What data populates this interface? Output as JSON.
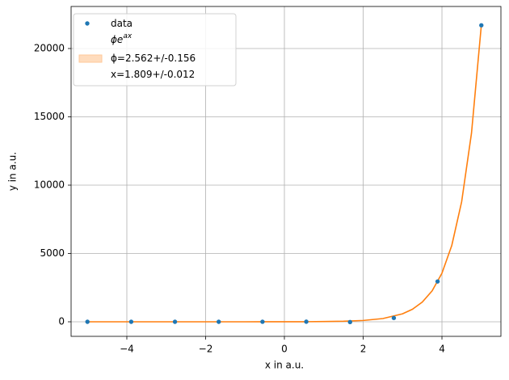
{
  "chart_data": {
    "type": "scatter-fit",
    "xlabel": "x in a.u.",
    "ylabel": "y in a.u.",
    "xlim": [
      -5.415,
      5.497
    ],
    "ylim": [
      -1065,
      23077
    ],
    "xticks": [
      {
        "value": -4,
        "label": "−4"
      },
      {
        "value": -2,
        "label": "−2"
      },
      0,
      2,
      4
    ],
    "yticks": [
      0,
      5000,
      10000,
      15000,
      20000
    ],
    "grid": true,
    "series": [
      {
        "name": "data",
        "kind": "scatter",
        "color": "#1f77b4",
        "x": [
          -5,
          -3.889,
          -2.778,
          -1.667,
          -0.556,
          0.556,
          1.667,
          2.778,
          3.889,
          5
        ],
        "values": [
          0,
          0,
          0,
          0,
          1,
          7,
          -20,
          280,
          2950,
          21700
        ]
      },
      {
        "kind": "line",
        "color": "#ff7f0e",
        "x": [
          -5,
          -4,
          -3,
          -2,
          -1,
          -0.5,
          0,
          0.5,
          1,
          1.5,
          2,
          2.5,
          3,
          3.25,
          3.5,
          3.75,
          4,
          4.25,
          4.5,
          4.75,
          5
        ],
        "values": [
          0.0003,
          0.0018,
          0.011,
          0.069,
          0.42,
          1.04,
          2.562,
          6.33,
          15.64,
          38.6,
          95.5,
          235.9,
          582.6,
          916,
          1439.6,
          2263,
          3556,
          5593,
          8786,
          13807,
          21710
        ]
      }
    ],
    "legend_position": "upper left",
    "legend_entries": [
      {
        "text": "data",
        "marker": "dot",
        "color": "#1f77b4"
      },
      {
        "text": "ϕe",
        "sup": "ax"
      },
      {
        "text": "ϕ=2.562+/-0.156",
        "marker": "patch",
        "color": "#ffdcbd"
      },
      {
        "text": "x=1.809+/-0.012"
      }
    ]
  }
}
